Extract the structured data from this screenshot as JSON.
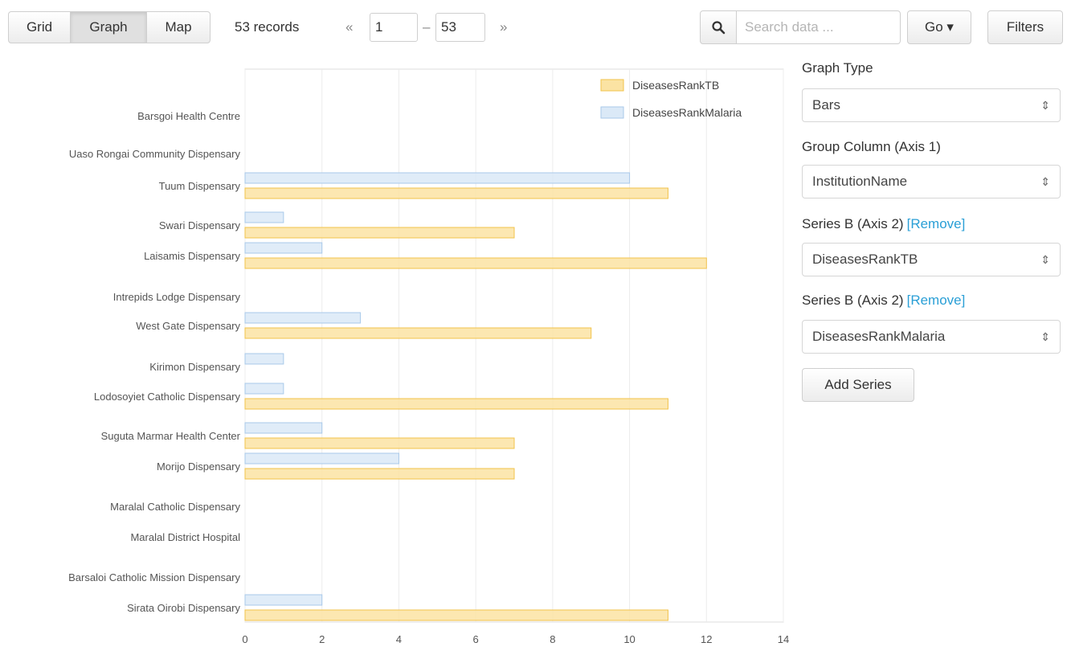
{
  "toolbar": {
    "views": [
      "Grid",
      "Graph",
      "Map"
    ],
    "active_view": "Graph",
    "record_count": "53 records",
    "pager": {
      "prev": "«",
      "from": "1",
      "separator": "–",
      "to": "53",
      "next": "»"
    },
    "search_placeholder": "Search data ...",
    "go_label": "Go ▾",
    "filters_label": "Filters"
  },
  "sidebar": {
    "graph_type_label": "Graph Type",
    "graph_type_value": "Bars",
    "group_label": "Group Column (Axis 1)",
    "group_value": "InstitutionName",
    "series": [
      {
        "label": "Series B (Axis 2)",
        "remove": "[Remove]",
        "value": "DiseasesRankTB"
      },
      {
        "label": "Series B (Axis 2)",
        "remove": "[Remove]",
        "value": "DiseasesRankMalaria"
      }
    ],
    "add_series_label": "Add Series"
  },
  "colors": {
    "tb_fill": "#fbe3a3",
    "tb_stroke": "#f2c34b",
    "malaria_fill": "#dbe9f7",
    "malaria_stroke": "#a9c9ea",
    "grid": "#ececec"
  },
  "chart_data": {
    "type": "bar",
    "orientation": "horizontal",
    "xlim": [
      0,
      14
    ],
    "xticks": [
      0,
      2,
      4,
      6,
      8,
      10,
      12,
      14
    ],
    "grid": true,
    "legend_position": "top-right",
    "categories": [
      "Barsgoi Health Centre",
      "Uaso Rongai Community Dispensary",
      "Tuum Dispensary",
      "Swari Dispensary",
      "Laisamis Dispensary",
      "Intrepids Lodge Dispensary",
      "West Gate Dispensary",
      "Kirimon Dispensary",
      "Lodosoyiet Catholic Dispensary",
      "Suguta Marmar Health Center",
      "Morijo Dispensary",
      "Maralal Catholic Dispensary",
      "Maralal District Hospital",
      "Barsaloi Catholic Mission Dispensary",
      "Sirata Oirobi Dispensary"
    ],
    "series": [
      {
        "name": "DiseasesRankTB",
        "values": [
          null,
          null,
          11,
          7,
          12,
          null,
          9,
          null,
          11,
          7,
          7,
          null,
          null,
          null,
          11
        ]
      },
      {
        "name": "DiseasesRankMalaria",
        "values": [
          null,
          null,
          10,
          1,
          2,
          null,
          3,
          1,
          1,
          2,
          4,
          null,
          null,
          null,
          2
        ]
      }
    ]
  }
}
